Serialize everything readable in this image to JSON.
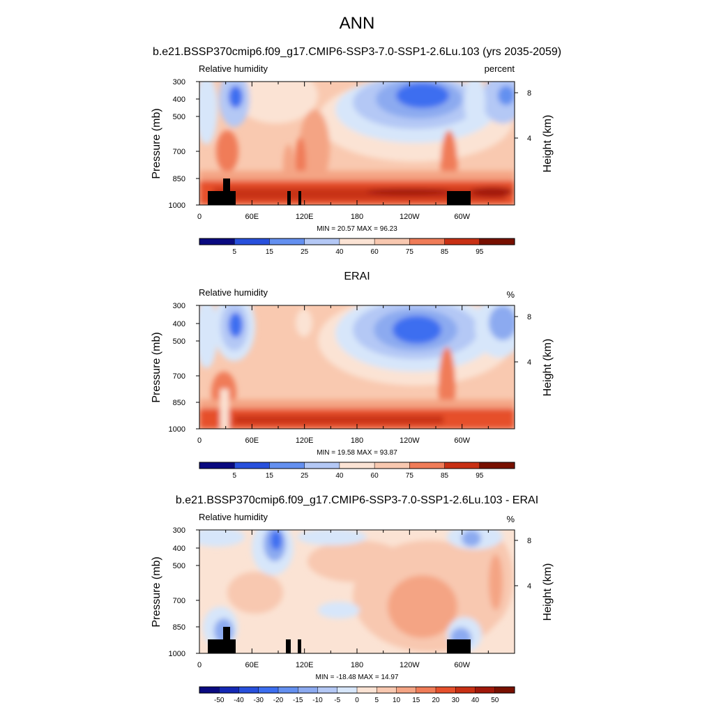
{
  "main_title": "ANN",
  "chart_data": [
    {
      "type": "heatmap",
      "title": "b.e21.BSSP370cmip6.f09_g17.CMIP6-SSP3-7.0-SSP1-2.6Lu.103 (yrs 2035-2059)",
      "left_label": "Relative humidity",
      "right_label": "percent",
      "ylabel": "Pressure (mb)",
      "y2label": "Height (km)",
      "xtick_labels": [
        "0",
        "60E",
        "120E",
        "180",
        "120W",
        "60W"
      ],
      "ytick_labels": [
        "300",
        "400",
        "500",
        "700",
        "850",
        "1000"
      ],
      "y2tick_labels": [
        "8",
        "4"
      ],
      "stats": "MIN = 20.57  MAX = 96.23",
      "min": 20.57,
      "max": 96.23,
      "colorbar_labels": [
        "5",
        "15",
        "25",
        "40",
        "60",
        "75",
        "85",
        "95"
      ],
      "has_topography": true
    },
    {
      "type": "heatmap",
      "title": "ERAI",
      "left_label": "Relative humidity",
      "right_label": "%",
      "ylabel": "Pressure (mb)",
      "y2label": "Height (km)",
      "xtick_labels": [
        "0",
        "60E",
        "120E",
        "180",
        "120W",
        "60W"
      ],
      "ytick_labels": [
        "300",
        "400",
        "500",
        "700",
        "850",
        "1000"
      ],
      "y2tick_labels": [
        "8",
        "4"
      ],
      "stats": "MIN = 19.58  MAX = 93.87",
      "min": 19.58,
      "max": 93.87,
      "colorbar_labels": [
        "5",
        "15",
        "25",
        "40",
        "60",
        "75",
        "85",
        "95"
      ],
      "has_topography": false
    },
    {
      "type": "heatmap",
      "title": "b.e21.BSSP370cmip6.f09_g17.CMIP6-SSP3-7.0-SSP1-2.6Lu.103 - ERAI",
      "left_label": "Relative humidity",
      "right_label": "%",
      "ylabel": "Pressure (mb)",
      "y2label": "Height (km)",
      "xtick_labels": [
        "0",
        "60E",
        "120E",
        "180",
        "120W",
        "60W"
      ],
      "ytick_labels": [
        "300",
        "400",
        "500",
        "700",
        "850",
        "1000"
      ],
      "y2tick_labels": [
        "8",
        "4"
      ],
      "stats": "MIN = -18.48  MAX = 14.97",
      "min": -18.48,
      "max": 14.97,
      "colorbar_labels": [
        "-50",
        "-40",
        "-30",
        "-20",
        "-15",
        "-10",
        "-5",
        "0",
        "5",
        "10",
        "15",
        "20",
        "30",
        "40",
        "50"
      ],
      "has_topography": true
    }
  ],
  "colorbar_colors": [
    "#0a0a80",
    "#1428b4",
    "#2850dc",
    "#3c6ef0",
    "#6490f0",
    "#8caaf0",
    "#b4c8f5",
    "#d7e6fa",
    "#fbe3d4",
    "#f8c8b0",
    "#f4a484",
    "#f07c58",
    "#e6502c",
    "#c83014",
    "#a0180a",
    "#781000"
  ],
  "colors": {
    "frame": "#000000",
    "topography": "#000000"
  }
}
